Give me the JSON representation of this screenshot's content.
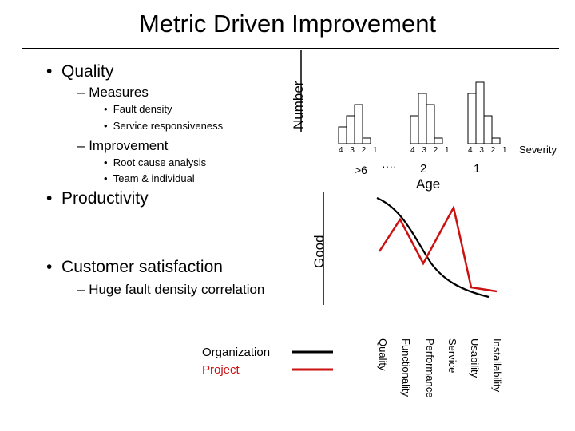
{
  "title": "Metric Driven Improvement",
  "bullets": {
    "quality": "Quality",
    "measures": "Measures",
    "fault_density": "Fault density",
    "service_responsiveness": "Service responsiveness",
    "improvement": "Improvement",
    "root_cause": "Root cause analysis",
    "team_individual": "Team & individual",
    "productivity": "Productivity",
    "customer_satisfaction": "Customer satisfaction",
    "huge_fault": "Huge fault density correlation"
  },
  "markers": {
    "bullet": "•",
    "dash": "–"
  },
  "histogram": {
    "y_label": "Number",
    "severity_label": "Severity",
    "age_label": "Age",
    "groups": [
      {
        "ticks": "4 3 2 1",
        "age": ">6",
        "bars": [
          1.5,
          2.5,
          3.5,
          0.5
        ]
      },
      {
        "ticks": "4 3 2 1",
        "age": "2",
        "bars": [
          2.5,
          4.5,
          3.5,
          0.5
        ]
      },
      {
        "ticks": "4 3 2 1",
        "age": "1",
        "bars": [
          4.5,
          5.5,
          2.5,
          0.5
        ]
      }
    ],
    "age_ellipsis": "····"
  },
  "satisfaction": {
    "y_label": "Good",
    "categories": [
      "Installability",
      "Usability",
      "Service",
      "Performance",
      "Functionality",
      "Quality"
    ],
    "legend": {
      "organization": "Organization",
      "project": "Project"
    },
    "colors": {
      "organization": "#000000",
      "project": "#cc1111"
    }
  }
}
